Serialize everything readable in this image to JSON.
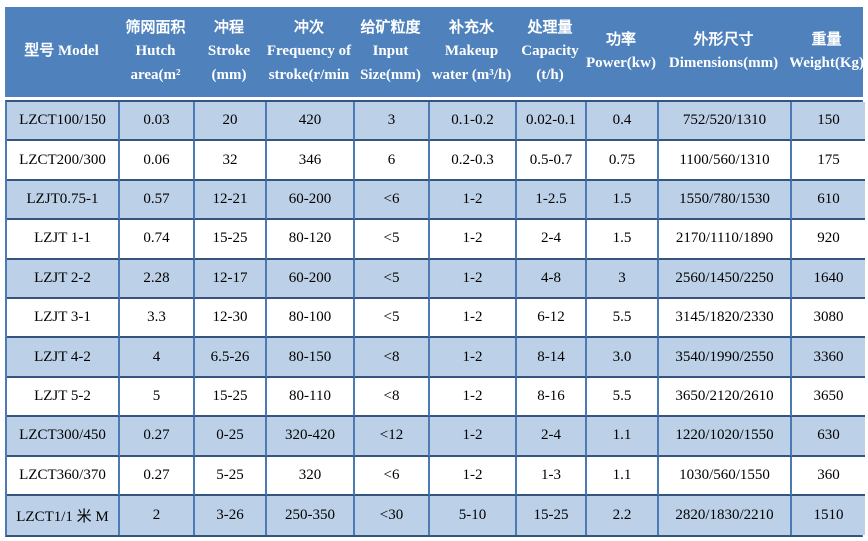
{
  "colors": {
    "header_bg": "#4f81bd",
    "header_text": "#ffffff",
    "banded_row_bg": "#bcd0e8",
    "grid_vertical": "#4c7ab4",
    "grid_horizontal": "#35547e",
    "body_text": "#000000"
  },
  "table": {
    "columns": [
      {
        "id": "model",
        "label": "型号 Model"
      },
      {
        "id": "hutch-area",
        "label": "筛网面积 Hutch area(m²"
      },
      {
        "id": "stroke",
        "label": "冲程 Stroke (mm)"
      },
      {
        "id": "frequency",
        "label": "冲次 Frequency of stroke(r/min"
      },
      {
        "id": "input-size",
        "label": "给矿粒度 Input Size(mm)"
      },
      {
        "id": "makeup-water",
        "label": "补充水 Makeup water (m³/h)"
      },
      {
        "id": "capacity",
        "label": "处理量 Capacity (t/h)"
      },
      {
        "id": "power",
        "label": "功率 Power(kw)"
      },
      {
        "id": "dimensions",
        "label": "外形尺寸 Dimensions(mm)"
      },
      {
        "id": "weight",
        "label": "重量 Weight(Kg)"
      }
    ],
    "rows": [
      [
        "LZCT100/150",
        "0.03",
        "20",
        "420",
        "3",
        "0.1-0.2",
        "0.02-0.1",
        "0.4",
        "752/520/1310",
        "150"
      ],
      [
        "LZCT200/300",
        "0.06",
        "32",
        "346",
        "6",
        "0.2-0.3",
        "0.5-0.7",
        "0.75",
        "1100/560/1310",
        "175"
      ],
      [
        "LZJT0.75-1",
        "0.57",
        "12-21",
        "60-200",
        "<6",
        "1-2",
        "1-2.5",
        "1.5",
        "1550/780/1530",
        "610"
      ],
      [
        "LZJT 1-1",
        "0.74",
        "15-25",
        "80-120",
        "<5",
        "1-2",
        "2-4",
        "1.5",
        "2170/1110/1890",
        "920"
      ],
      [
        "LZJT 2-2",
        "2.28",
        "12-17",
        "60-200",
        "<5",
        "1-2",
        "4-8",
        "3",
        "2560/1450/2250",
        "1640"
      ],
      [
        "LZJT 3-1",
        "3.3",
        "12-30",
        "80-100",
        "<5",
        "1-2",
        "6-12",
        "5.5",
        "3145/1820/2330",
        "3080"
      ],
      [
        "LZJT 4-2",
        "4",
        "6.5-26",
        "80-150",
        "<8",
        "1-2",
        "8-14",
        "3.0",
        "3540/1990/2550",
        "3360"
      ],
      [
        "LZJT 5-2",
        "5",
        "15-25",
        "80-110",
        "<8",
        "1-2",
        "8-16",
        "5.5",
        "3650/2120/2610",
        "3650"
      ],
      [
        "LZCT300/450",
        "0.27",
        "0-25",
        "320-420",
        "<12",
        "1-2",
        "2-4",
        "1.1",
        "1220/1020/1550",
        "630"
      ],
      [
        "LZCT360/370",
        "0.27",
        "5-25",
        "320",
        "<6",
        "1-2",
        "1-3",
        "1.1",
        "1030/560/1550",
        "360"
      ],
      [
        "LZCT1/1 米 M",
        "2",
        "3-26",
        "250-350",
        "<30",
        "5-10",
        "15-25",
        "2.2",
        "2820/1830/2210",
        "1510"
      ]
    ]
  }
}
